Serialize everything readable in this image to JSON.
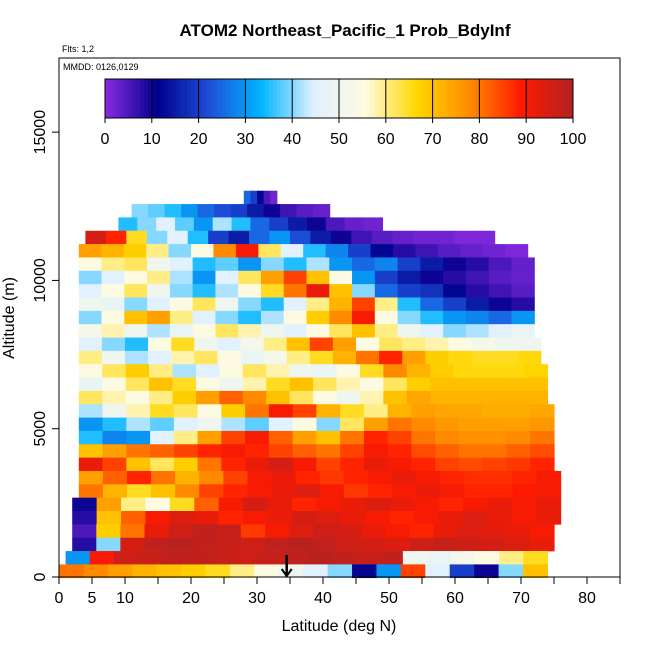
{
  "chart_data": {
    "type": "heatmap",
    "title": "ATOM2 Northeast_Pacific_1 Prob_BdyInf",
    "subtitle_flights": "Flts: 1,2",
    "subtitle_dates": "MMDD: 0126,0129",
    "xlabel": "Latitude (deg N)",
    "ylabel": "Altitude (m)",
    "xlim": [
      0,
      85
    ],
    "ylim": [
      0,
      17500
    ],
    "x_ticks": [
      0,
      5,
      10,
      20,
      30,
      40,
      50,
      60,
      70,
      80
    ],
    "x_tick_labels": [
      "0",
      "5",
      "10",
      "20",
      "30",
      "40",
      "50",
      "60",
      "70",
      "80"
    ],
    "x_minor_ticks": [
      15,
      25,
      35,
      45,
      55,
      65,
      75,
      85
    ],
    "y_ticks": [
      0,
      5000,
      10000,
      15000
    ],
    "y_tick_labels": [
      "0",
      "5000",
      "10000",
      "15000"
    ],
    "colorbar": {
      "min": 0,
      "max": 100,
      "ticks": [
        0,
        10,
        20,
        30,
        40,
        50,
        60,
        70,
        80,
        90,
        100
      ],
      "tick_labels": [
        "0",
        "10",
        "20",
        "30",
        "40",
        "50",
        "60",
        "70",
        "80",
        "90",
        "100"
      ],
      "colors": [
        "#8a2be2",
        "#00008b",
        "#1e4fd8",
        "#00b4ff",
        "#dff0ff",
        "#fffbe0",
        "#ffd700",
        "#ff8c00",
        "#ff1a00",
        "#b22222"
      ]
    },
    "marker": {
      "x": 34.5,
      "y": 0
    },
    "rows": [
      {
        "y": 12800,
        "x0": 28,
        "x1": 33,
        "v": [
          25,
          20,
          12,
          5,
          2
        ]
      },
      {
        "y": 12350,
        "x0": 11,
        "x1": 41,
        "v": [
          40,
          38,
          35,
          30,
          25,
          22,
          20,
          15,
          10,
          6,
          4,
          3
        ]
      },
      {
        "y": 11900,
        "x0": 9,
        "x1": 49,
        "v": [
          35,
          40,
          45,
          38,
          30,
          42,
          35,
          25,
          20,
          15,
          10,
          5,
          3,
          2
        ]
      },
      {
        "y": 11450,
        "x0": 4,
        "x1": 66,
        "v": [
          95,
          88,
          65,
          40,
          45,
          35,
          20,
          15,
          25,
          30,
          22,
          15,
          10,
          6,
          4,
          3,
          2,
          2,
          1,
          1
        ]
      },
      {
        "y": 11000,
        "x0": 3,
        "x1": 71,
        "v": [
          75,
          72,
          68,
          60,
          40,
          55,
          78,
          90,
          62,
          45,
          35,
          28,
          20,
          12,
          8,
          6,
          4,
          3,
          2,
          1
        ]
      },
      {
        "y": 10550,
        "x0": 3,
        "x1": 72,
        "v": [
          55,
          60,
          62,
          50,
          45,
          35,
          38,
          30,
          40,
          35,
          42,
          30,
          25,
          28,
          20,
          15,
          10,
          8,
          5,
          3
        ]
      },
      {
        "y": 10100,
        "x0": 3,
        "x1": 72,
        "v": [
          40,
          45,
          55,
          60,
          42,
          30,
          45,
          62,
          75,
          85,
          70,
          55,
          30,
          20,
          15,
          10,
          8,
          6,
          4,
          3
        ]
      },
      {
        "y": 9650,
        "x0": 3,
        "x1": 72,
        "v": [
          45,
          55,
          62,
          50,
          40,
          35,
          42,
          55,
          65,
          80,
          92,
          70,
          40,
          25,
          20,
          18,
          12,
          8,
          6,
          4
        ]
      },
      {
        "y": 9200,
        "x0": 3,
        "x1": 72,
        "v": [
          50,
          48,
          40,
          45,
          55,
          62,
          50,
          40,
          35,
          45,
          60,
          72,
          85,
          60,
          35,
          25,
          20,
          15,
          10,
          8
        ]
      },
      {
        "y": 8750,
        "x0": 3,
        "x1": 72,
        "v": [
          40,
          55,
          70,
          75,
          60,
          45,
          40,
          35,
          42,
          55,
          68,
          78,
          90,
          55,
          40,
          35,
          30,
          28,
          25,
          30
        ]
      },
      {
        "y": 8300,
        "x0": 3,
        "x1": 72,
        "v": [
          52,
          58,
          50,
          42,
          48,
          55,
          62,
          58,
          50,
          45,
          55,
          62,
          70,
          60,
          50,
          45,
          40,
          42,
          45,
          48
        ]
      },
      {
        "y": 7850,
        "x0": 3,
        "x1": 73,
        "v": [
          45,
          40,
          35,
          55,
          65,
          50,
          45,
          52,
          60,
          70,
          85,
          75,
          55,
          62,
          60,
          58,
          55,
          52,
          50,
          50
        ]
      },
      {
        "y": 7400,
        "x0": 3,
        "x1": 73,
        "v": [
          60,
          50,
          42,
          45,
          58,
          62,
          55,
          48,
          52,
          60,
          65,
          72,
          80,
          88,
          75,
          68,
          66,
          65,
          65,
          66
        ]
      },
      {
        "y": 6950,
        "x0": 3,
        "x1": 74,
        "v": [
          55,
          62,
          68,
          60,
          42,
          45,
          55,
          62,
          58,
          50,
          48,
          55,
          65,
          78,
          72,
          68,
          66,
          66,
          66,
          67
        ]
      },
      {
        "y": 6500,
        "x0": 3,
        "x1": 74,
        "v": [
          48,
          55,
          62,
          70,
          65,
          55,
          50,
          58,
          65,
          70,
          62,
          58,
          55,
          62,
          68,
          70,
          70,
          70,
          70,
          70
        ]
      },
      {
        "y": 6050,
        "x0": 3,
        "x1": 74,
        "v": [
          62,
          58,
          55,
          60,
          68,
          75,
          82,
          78,
          70,
          62,
          55,
          50,
          58,
          70,
          74,
          72,
          72,
          72,
          72,
          72
        ]
      },
      {
        "y": 5600,
        "x0": 3,
        "x1": 75,
        "v": [
          42,
          50,
          58,
          65,
          62,
          55,
          68,
          80,
          90,
          85,
          72,
          65,
          60,
          72,
          75,
          74,
          74,
          73,
          73,
          74
        ]
      },
      {
        "y": 5150,
        "x0": 3,
        "x1": 75,
        "v": [
          30,
          35,
          42,
          38,
          45,
          50,
          42,
          38,
          45,
          55,
          40,
          62,
          75,
          80,
          78,
          76,
          75,
          75,
          75,
          76
        ]
      },
      {
        "y": 4700,
        "x0": 3,
        "x1": 75,
        "v": [
          35,
          28,
          30,
          45,
          60,
          75,
          85,
          90,
          82,
          75,
          70,
          80,
          88,
          85,
          80,
          78,
          77,
          77,
          78,
          80
        ]
      },
      {
        "y": 4250,
        "x0": 3,
        "x1": 75,
        "v": [
          70,
          75,
          80,
          82,
          85,
          88,
          90,
          88,
          85,
          82,
          80,
          85,
          90,
          88,
          84,
          82,
          80,
          80,
          82,
          84
        ]
      },
      {
        "y": 3800,
        "x0": 3,
        "x1": 75,
        "v": [
          92,
          85,
          70,
          62,
          68,
          80,
          88,
          92,
          95,
          90,
          85,
          88,
          92,
          90,
          88,
          85,
          84,
          85,
          86,
          88
        ]
      },
      {
        "y": 3350,
        "x0": 3,
        "x1": 76,
        "v": [
          75,
          82,
          88,
          80,
          72,
          78,
          85,
          90,
          92,
          88,
          86,
          88,
          90,
          92,
          90,
          88,
          87,
          87,
          88,
          90
        ]
      },
      {
        "y": 2900,
        "x0": 3,
        "x1": 76,
        "v": [
          80,
          72,
          65,
          70,
          78,
          85,
          88,
          90,
          92,
          94,
          90,
          86,
          88,
          90,
          92,
          90,
          88,
          88,
          89,
          90
        ]
      },
      {
        "y": 2450,
        "x0": 2,
        "x1": 76,
        "v": [
          10,
          75,
          60,
          55,
          65,
          82,
          90,
          95,
          92,
          88,
          90,
          92,
          94,
          92,
          90,
          88,
          90,
          92,
          90,
          92
        ]
      },
      {
        "y": 2000,
        "x0": 2,
        "x1": 76,
        "v": [
          8,
          70,
          82,
          90,
          94,
          92,
          88,
          90,
          92,
          95,
          94,
          92,
          90,
          88,
          90,
          92,
          94,
          92,
          90,
          92
        ]
      },
      {
        "y": 1550,
        "x0": 2,
        "x1": 75,
        "v": [
          5,
          68,
          80,
          92,
          96,
          98,
          97,
          86,
          90,
          94,
          96,
          95,
          92,
          90,
          88,
          92,
          94,
          93,
          92,
          90
        ]
      },
      {
        "y": 1100,
        "x0": 2,
        "x1": 75,
        "v": [
          8,
          40,
          95,
          98,
          99,
          98,
          97,
          96,
          98,
          99,
          98,
          96,
          95,
          94,
          96,
          97,
          96,
          95,
          94,
          92
        ]
      },
      {
        "y": 650,
        "x0": 1,
        "x1": 74,
        "v": [
          30,
          90,
          96,
          97,
          98,
          98,
          97,
          96,
          97,
          98,
          99,
          98,
          97,
          98,
          50,
          48,
          52,
          55,
          60,
          65
        ]
      },
      {
        "y": 200,
        "x0": 0,
        "x1": 74,
        "v": [
          80,
          78,
          75,
          72,
          70,
          68,
          65,
          60,
          55,
          50,
          45,
          40,
          12,
          30,
          85,
          45,
          20,
          10,
          40,
          70
        ]
      }
    ]
  }
}
